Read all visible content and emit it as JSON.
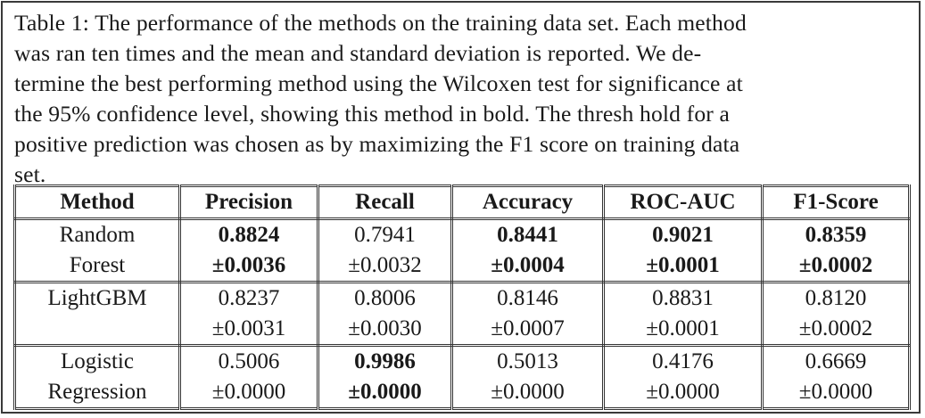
{
  "caption": {
    "lines": [
      "Table 1: The performance of the methods on the training data set. Each method",
      "was ran ten times and the mean and standard deviation is reported. We de-",
      "termine the best performing method using the Wilcoxen test for significance at",
      "the 95% confidence level, showing this method in bold. The thresh hold for a",
      "positive prediction was chosen as by maximizing the F1 score on training data",
      "set."
    ]
  },
  "table": {
    "headers": [
      "Method",
      "Precision",
      "Recall",
      "Accuracy",
      "ROC-AUC",
      "F1-Score"
    ],
    "rows": [
      {
        "method_line1": "Random",
        "method_line2": "Forest",
        "means": [
          "0.8824",
          "0.7941",
          "0.8441",
          "0.9021",
          "0.8359"
        ],
        "stds": [
          "±0.0036",
          "±0.0032",
          "±0.0004",
          "±0.0001",
          "±0.0002"
        ],
        "bold": [
          true,
          false,
          true,
          true,
          true
        ]
      },
      {
        "method_line1": "LightGBM",
        "method_line2": "",
        "means": [
          "0.8237",
          "0.8006",
          "0.8146",
          "0.8831",
          "0.8120"
        ],
        "stds": [
          "±0.0031",
          "±0.0030",
          "±0.0007",
          "±0.0001",
          "±0.0002"
        ],
        "bold": [
          false,
          false,
          false,
          false,
          false
        ]
      },
      {
        "method_line1": "Logistic",
        "method_line2": "Regression",
        "means": [
          "0.5006",
          "0.9986",
          "0.5013",
          "0.4176",
          "0.6669"
        ],
        "stds": [
          "±0.0000",
          "±0.0000",
          "±0.0000",
          "±0.0000",
          "±0.0000"
        ],
        "bold": [
          false,
          true,
          false,
          false,
          false
        ]
      }
    ]
  }
}
